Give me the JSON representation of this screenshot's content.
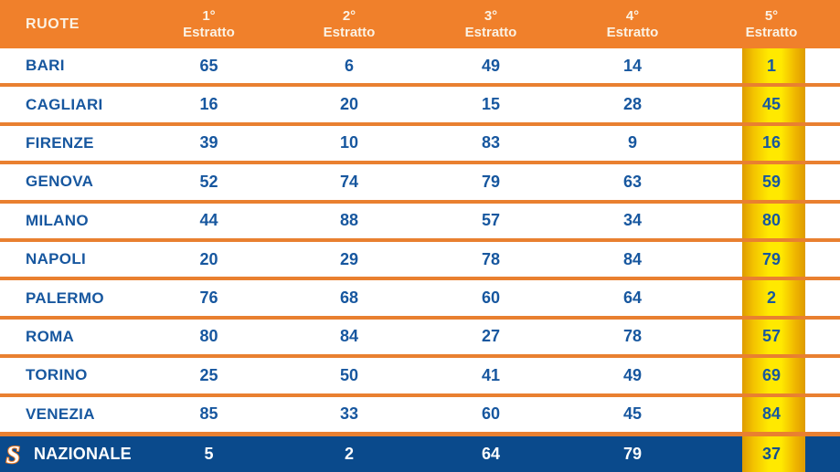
{
  "table": {
    "header": {
      "ruote_label": "RUOTE",
      "columns": [
        {
          "ordinal": "1°",
          "label": "Estratto"
        },
        {
          "ordinal": "2°",
          "label": "Estratto"
        },
        {
          "ordinal": "3°",
          "label": "Estratto"
        },
        {
          "ordinal": "4°",
          "label": "Estratto"
        },
        {
          "ordinal": "5°",
          "label": "Estratto"
        }
      ]
    },
    "rows": [
      {
        "wheel": "BARI",
        "numbers": [
          "65",
          "6",
          "49",
          "14",
          "1"
        ]
      },
      {
        "wheel": "CAGLIARI",
        "numbers": [
          "16",
          "20",
          "15",
          "28",
          "45"
        ]
      },
      {
        "wheel": "FIRENZE",
        "numbers": [
          "39",
          "10",
          "83",
          "9",
          "16"
        ]
      },
      {
        "wheel": "GENOVA",
        "numbers": [
          "52",
          "74",
          "79",
          "63",
          "59"
        ]
      },
      {
        "wheel": "MILANO",
        "numbers": [
          "44",
          "88",
          "57",
          "34",
          "80"
        ]
      },
      {
        "wheel": "NAPOLI",
        "numbers": [
          "20",
          "29",
          "78",
          "84",
          "79"
        ]
      },
      {
        "wheel": "PALERMO",
        "numbers": [
          "76",
          "68",
          "60",
          "64",
          "2"
        ]
      },
      {
        "wheel": "ROMA",
        "numbers": [
          "80",
          "84",
          "27",
          "78",
          "57"
        ]
      },
      {
        "wheel": "TORINO",
        "numbers": [
          "25",
          "50",
          "41",
          "49",
          "69"
        ]
      },
      {
        "wheel": "VENEZIA",
        "numbers": [
          "85",
          "33",
          "60",
          "45",
          "84"
        ]
      }
    ],
    "nazionale": {
      "wheel": "NAZIONALE",
      "logo_icon": "stylized-S",
      "logo_glyph": "S",
      "numbers": [
        "5",
        "2",
        "64",
        "79",
        "37"
      ]
    }
  },
  "colors": {
    "header_orange": "#F0802B",
    "divider_orange": "#E98030",
    "text_blue": "#17579F",
    "nazionale_blue": "#0A4A8C",
    "highlight_yellow": "#FFE900",
    "highlight_gold": "#DE9B00",
    "header_text": "#FBF2E4",
    "logo_outline_orange": "#E87722"
  }
}
